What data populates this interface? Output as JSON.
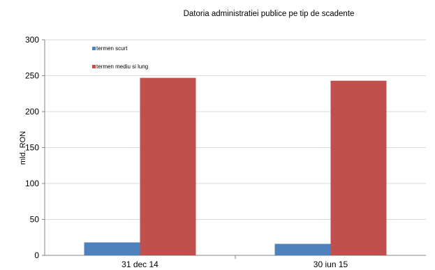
{
  "chart_data": {
    "type": "bar",
    "title": "Datoria administratiei publice  pe tip de scadente",
    "xlabel": "",
    "ylabel": "mld. RON",
    "categories": [
      "31 dec 14",
      "30 iun 15"
    ],
    "series": [
      {
        "name": "termen scurt",
        "color": "#4f81bd",
        "values": [
          18,
          16
        ]
      },
      {
        "name": "termen mediu si lung",
        "color": "#c0504d",
        "values": [
          247,
          243
        ]
      }
    ],
    "ylim": [
      0,
      300
    ],
    "yticks": [
      0,
      50,
      100,
      150,
      200,
      250,
      300
    ],
    "grid": true,
    "legend_position": "top-left"
  }
}
